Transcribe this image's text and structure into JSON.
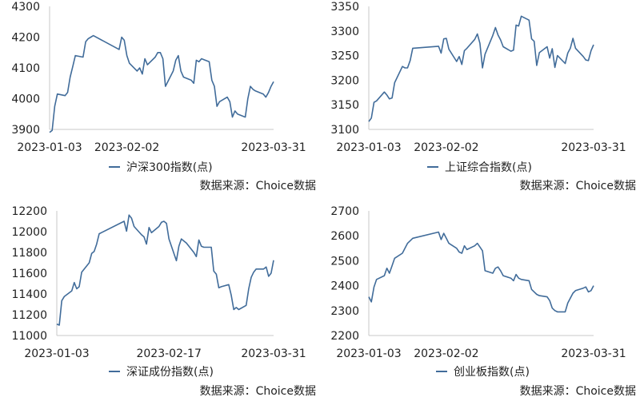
{
  "source_label": "数据来源：Choice数据",
  "chart_data": [
    {
      "type": "line",
      "legend": "沪深300指数(点)",
      "ylim": [
        3900,
        4300
      ],
      "yticks": [
        3900,
        4000,
        4100,
        4200,
        4300
      ],
      "xticks": [
        "2023-01-03",
        "2023-02-02",
        "2023-03-31"
      ],
      "xlim": [
        "2023-01-03",
        "2023-03-31"
      ],
      "color": "#416c9a",
      "series": [
        {
          "x": [
            "2023-01-03",
            "2023-01-04",
            "2023-01-05",
            "2023-01-06",
            "2023-01-09",
            "2023-01-10",
            "2023-01-11",
            "2023-01-12",
            "2023-01-13",
            "2023-01-16",
            "2023-01-17",
            "2023-01-18",
            "2023-01-19",
            "2023-01-20",
            "2023-01-30",
            "2023-01-31",
            "2023-02-01",
            "2023-02-02",
            "2023-02-03",
            "2023-02-06",
            "2023-02-07",
            "2023-02-08",
            "2023-02-09",
            "2023-02-10",
            "2023-02-13",
            "2023-02-14",
            "2023-02-15",
            "2023-02-16",
            "2023-02-17",
            "2023-02-20",
            "2023-02-21",
            "2023-02-22",
            "2023-02-23",
            "2023-02-24",
            "2023-02-27",
            "2023-02-28",
            "2023-03-01",
            "2023-03-02",
            "2023-03-03",
            "2023-03-06",
            "2023-03-07",
            "2023-03-08",
            "2023-03-09",
            "2023-03-10",
            "2023-03-13",
            "2023-03-14",
            "2023-03-15",
            "2023-03-16",
            "2023-03-17",
            "2023-03-20",
            "2023-03-21",
            "2023-03-22",
            "2023-03-23",
            "2023-03-24",
            "2023-03-27",
            "2023-03-28",
            "2023-03-29",
            "2023-03-30",
            "2023-03-31"
          ],
          "values": [
            3890,
            3897,
            3975,
            4015,
            4010,
            4020,
            4070,
            4105,
            4140,
            4135,
            4185,
            4195,
            4200,
            4205,
            4160,
            4200,
            4190,
            4140,
            4115,
            4090,
            4100,
            4080,
            4130,
            4110,
            4135,
            4150,
            4150,
            4130,
            4040,
            4090,
            4125,
            4140,
            4090,
            4070,
            4060,
            4050,
            4125,
            4120,
            4130,
            4120,
            4060,
            4040,
            3975,
            3990,
            4005,
            3990,
            3940,
            3960,
            3950,
            3940,
            4000,
            4040,
            4030,
            4025,
            4015,
            4005,
            4020,
            4040,
            4055
          ]
        }
      ]
    },
    {
      "type": "line",
      "legend": "上证综合指数(点)",
      "ylim": [
        3100,
        3350
      ],
      "yticks": [
        3100,
        3150,
        3200,
        3250,
        3300,
        3350
      ],
      "xticks": [
        "2023-01-03",
        "2023-02-02",
        "2023-03-31"
      ],
      "xlim": [
        "2023-01-03",
        "2023-03-31"
      ],
      "color": "#416c9a",
      "series": [
        {
          "x": [
            "2023-01-03",
            "2023-01-04",
            "2023-01-05",
            "2023-01-06",
            "2023-01-09",
            "2023-01-10",
            "2023-01-11",
            "2023-01-12",
            "2023-01-13",
            "2023-01-16",
            "2023-01-17",
            "2023-01-18",
            "2023-01-19",
            "2023-01-20",
            "2023-01-30",
            "2023-01-31",
            "2023-02-01",
            "2023-02-02",
            "2023-02-03",
            "2023-02-06",
            "2023-02-07",
            "2023-02-08",
            "2023-02-09",
            "2023-02-10",
            "2023-02-13",
            "2023-02-14",
            "2023-02-15",
            "2023-02-16",
            "2023-02-17",
            "2023-02-20",
            "2023-02-21",
            "2023-02-22",
            "2023-02-23",
            "2023-02-24",
            "2023-02-27",
            "2023-02-28",
            "2023-03-01",
            "2023-03-02",
            "2023-03-03",
            "2023-03-06",
            "2023-03-07",
            "2023-03-08",
            "2023-03-09",
            "2023-03-10",
            "2023-03-13",
            "2023-03-14",
            "2023-03-15",
            "2023-03-16",
            "2023-03-17",
            "2023-03-20",
            "2023-03-21",
            "2023-03-22",
            "2023-03-23",
            "2023-03-24",
            "2023-03-27",
            "2023-03-28",
            "2023-03-29",
            "2023-03-30",
            "2023-03-31"
          ],
          "values": [
            3116,
            3123,
            3155,
            3158,
            3176,
            3170,
            3162,
            3164,
            3195,
            3228,
            3225,
            3225,
            3240,
            3265,
            3269,
            3255,
            3284,
            3285,
            3263,
            3238,
            3248,
            3232,
            3260,
            3265,
            3283,
            3294,
            3275,
            3225,
            3253,
            3291,
            3307,
            3292,
            3282,
            3268,
            3259,
            3261,
            3312,
            3310,
            3330,
            3322,
            3284,
            3279,
            3230,
            3256,
            3268,
            3245,
            3264,
            3226,
            3250,
            3234,
            3255,
            3265,
            3285,
            3265,
            3248,
            3241,
            3240,
            3260,
            3272
          ]
        }
      ]
    },
    {
      "type": "line",
      "legend": "深证成份指数(点)",
      "ylim": [
        11000,
        12200
      ],
      "yticks": [
        11000,
        11200,
        11400,
        11600,
        11800,
        12000,
        12200
      ],
      "xticks": [
        "2023-01-03",
        "2023-02-17",
        "2023-03-31"
      ],
      "xlim": [
        "2023-01-03",
        "2023-03-31"
      ],
      "color": "#416c9a",
      "series": [
        {
          "x": [
            "2023-01-03",
            "2023-01-04",
            "2023-01-05",
            "2023-01-06",
            "2023-01-09",
            "2023-01-10",
            "2023-01-11",
            "2023-01-12",
            "2023-01-13",
            "2023-01-16",
            "2023-01-17",
            "2023-01-18",
            "2023-01-19",
            "2023-01-20",
            "2023-01-30",
            "2023-01-31",
            "2023-02-01",
            "2023-02-02",
            "2023-02-03",
            "2023-02-06",
            "2023-02-07",
            "2023-02-08",
            "2023-02-09",
            "2023-02-10",
            "2023-02-13",
            "2023-02-14",
            "2023-02-15",
            "2023-02-16",
            "2023-02-17",
            "2023-02-20",
            "2023-02-21",
            "2023-02-22",
            "2023-02-23",
            "2023-02-24",
            "2023-02-27",
            "2023-02-28",
            "2023-03-01",
            "2023-03-02",
            "2023-03-03",
            "2023-03-06",
            "2023-03-07",
            "2023-03-08",
            "2023-03-09",
            "2023-03-10",
            "2023-03-13",
            "2023-03-14",
            "2023-03-15",
            "2023-03-16",
            "2023-03-17",
            "2023-03-20",
            "2023-03-21",
            "2023-03-22",
            "2023-03-23",
            "2023-03-24",
            "2023-03-27",
            "2023-03-28",
            "2023-03-29",
            "2023-03-30",
            "2023-03-31"
          ],
          "values": [
            11110,
            11100,
            11335,
            11375,
            11430,
            11510,
            11450,
            11470,
            11610,
            11700,
            11790,
            11810,
            11880,
            11980,
            12100,
            12005,
            12160,
            12130,
            12050,
            11970,
            11950,
            11880,
            12040,
            11990,
            12050,
            12090,
            12100,
            12080,
            11930,
            11720,
            11860,
            11930,
            11910,
            11890,
            11800,
            11760,
            11920,
            11860,
            11850,
            11850,
            11620,
            11590,
            11460,
            11470,
            11490,
            11390,
            11250,
            11270,
            11250,
            11290,
            11450,
            11560,
            11610,
            11640,
            11640,
            11660,
            11570,
            11600,
            11725
          ]
        }
      ]
    },
    {
      "type": "line",
      "legend": "创业板指数(点)",
      "ylim": [
        2200,
        2700
      ],
      "yticks": [
        2200,
        2300,
        2400,
        2500,
        2600,
        2700
      ],
      "xticks": [
        "2023-01-03",
        "2023-02-02",
        "2023-03-31"
      ],
      "xlim": [
        "2023-01-03",
        "2023-03-31"
      ],
      "color": "#416c9a",
      "series": [
        {
          "x": [
            "2023-01-03",
            "2023-01-04",
            "2023-01-05",
            "2023-01-06",
            "2023-01-09",
            "2023-01-10",
            "2023-01-11",
            "2023-01-12",
            "2023-01-13",
            "2023-01-16",
            "2023-01-17",
            "2023-01-18",
            "2023-01-19",
            "2023-01-20",
            "2023-01-30",
            "2023-01-31",
            "2023-02-01",
            "2023-02-02",
            "2023-02-03",
            "2023-02-06",
            "2023-02-07",
            "2023-02-08",
            "2023-02-09",
            "2023-02-10",
            "2023-02-13",
            "2023-02-14",
            "2023-02-15",
            "2023-02-16",
            "2023-02-17",
            "2023-02-20",
            "2023-02-21",
            "2023-02-22",
            "2023-02-23",
            "2023-02-24",
            "2023-02-27",
            "2023-02-28",
            "2023-03-01",
            "2023-03-02",
            "2023-03-03",
            "2023-03-06",
            "2023-03-07",
            "2023-03-08",
            "2023-03-09",
            "2023-03-10",
            "2023-03-13",
            "2023-03-14",
            "2023-03-15",
            "2023-03-16",
            "2023-03-17",
            "2023-03-20",
            "2023-03-21",
            "2023-03-22",
            "2023-03-23",
            "2023-03-24",
            "2023-03-27",
            "2023-03-28",
            "2023-03-29",
            "2023-03-30",
            "2023-03-31"
          ],
          "values": [
            2355,
            2335,
            2395,
            2425,
            2440,
            2470,
            2450,
            2480,
            2510,
            2530,
            2550,
            2570,
            2580,
            2590,
            2615,
            2585,
            2610,
            2590,
            2570,
            2550,
            2535,
            2530,
            2560,
            2545,
            2560,
            2570,
            2555,
            2540,
            2460,
            2450,
            2470,
            2475,
            2460,
            2440,
            2430,
            2420,
            2445,
            2430,
            2425,
            2420,
            2385,
            2375,
            2365,
            2360,
            2355,
            2340,
            2310,
            2300,
            2295,
            2295,
            2330,
            2350,
            2370,
            2380,
            2390,
            2395,
            2375,
            2380,
            2400
          ]
        }
      ]
    }
  ]
}
